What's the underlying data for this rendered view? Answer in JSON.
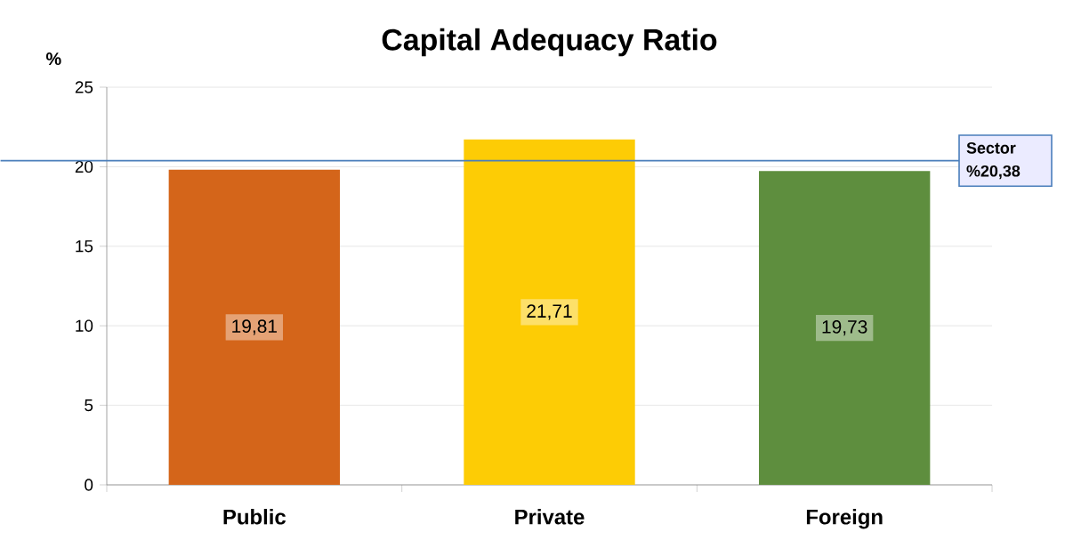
{
  "chart_data": {
    "type": "bar",
    "title": "Capital Adequacy Ratio",
    "ylabel": "%",
    "categories": [
      "Public",
      "Private",
      "Foreign"
    ],
    "values": [
      19.81,
      21.71,
      19.73
    ],
    "colors": [
      "#d4651a",
      "#fdcc05",
      "#5e8e3e"
    ],
    "value_labels": [
      "19,81",
      "21,71",
      "19,73"
    ],
    "ylim": [
      0,
      25
    ],
    "yticks": [
      0,
      5,
      10,
      15,
      20,
      25
    ],
    "grid": "y",
    "ref_lines": [
      {
        "axis": "y",
        "value": 20.38,
        "label": "Sector %20,38",
        "color": "#4a7ebb"
      }
    ]
  }
}
